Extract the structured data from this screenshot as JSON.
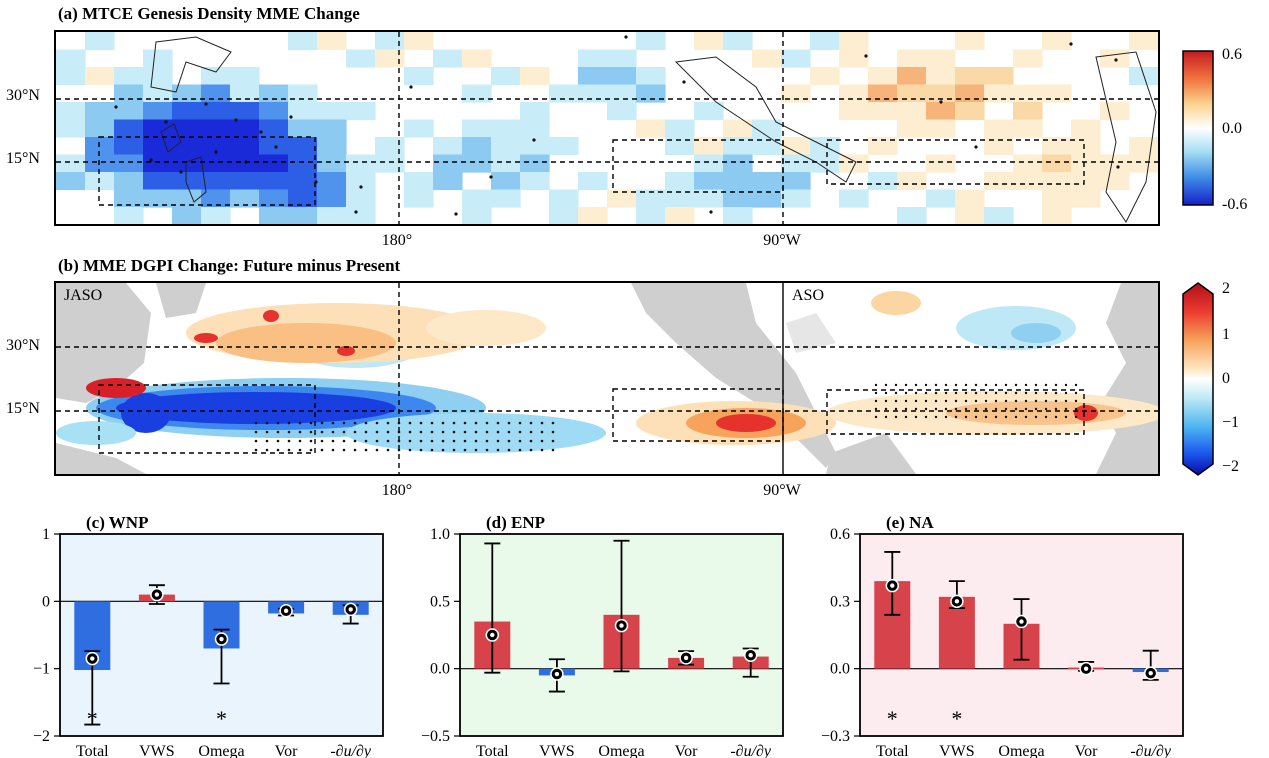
{
  "panel_a": {
    "title": "(a) MTCE Genesis Density MME Change",
    "lat_ticks": [
      "30°N",
      "15°N"
    ],
    "lon_ticks": [
      "180°",
      "90°W"
    ],
    "colorbar_ticks": [
      "0.6",
      "0.0",
      "-0.6"
    ],
    "colors": {
      "neg": "#1f2fd8",
      "pos": "#d8262b"
    }
  },
  "panel_b": {
    "title": "(b) MME DGPI Change: Future minus Present",
    "lat_ticks": [
      "30°N",
      "15°N"
    ],
    "lon_ticks": [
      "180°",
      "90°W"
    ],
    "colorbar_ticks": [
      "2",
      "1",
      "0",
      "−1",
      "−2"
    ],
    "season_left": "JASO",
    "season_right": "ASO"
  },
  "chart_data": [
    {
      "type": "bar",
      "title": "(c) WNP",
      "categories": [
        "Total",
        "VWS",
        "Omega",
        "Vor",
        "-∂u/∂y"
      ],
      "values": [
        -1.02,
        0.1,
        -0.7,
        -0.18,
        -0.2
      ],
      "model_mean": [
        -0.85,
        0.1,
        -0.56,
        -0.14,
        -0.12
      ],
      "error_low": [
        -1.83,
        -0.04,
        -1.22,
        -0.21,
        -0.33
      ],
      "error_high": [
        -0.74,
        0.24,
        -0.42,
        -0.11,
        -0.06
      ],
      "significant": [
        "*",
        "",
        "*",
        "",
        ""
      ],
      "ylim": [
        -2,
        1
      ],
      "yticks": [
        "1",
        "0",
        "−1",
        "−2"
      ],
      "background": "#eaf4fc"
    },
    {
      "type": "bar",
      "title": "(d) ENP",
      "categories": [
        "Total",
        "VWS",
        "Omega",
        "Vor",
        "-∂u/∂y"
      ],
      "values": [
        0.35,
        -0.05,
        0.4,
        0.08,
        0.09
      ],
      "model_mean": [
        0.25,
        -0.04,
        0.32,
        0.08,
        0.1
      ],
      "error_low": [
        -0.03,
        -0.17,
        -0.02,
        0.03,
        -0.06
      ],
      "error_high": [
        0.93,
        0.07,
        0.95,
        0.13,
        0.15
      ],
      "significant": [
        "",
        "",
        "",
        "",
        ""
      ],
      "ylim": [
        -0.5,
        1.0
      ],
      "yticks": [
        "1.0",
        "0.5",
        "0.0",
        "−0.5"
      ],
      "background": "#eafaea"
    },
    {
      "type": "bar",
      "title": "(e) NA",
      "categories": [
        "Total",
        "VWS",
        "Omega",
        "Vor",
        "-∂u/∂y"
      ],
      "values": [
        0.39,
        0.32,
        0.2,
        0.005,
        -0.015
      ],
      "model_mean": [
        0.37,
        0.3,
        0.21,
        0.0,
        -0.02
      ],
      "error_low": [
        0.24,
        0.27,
        0.04,
        -0.01,
        -0.05
      ],
      "error_high": [
        0.52,
        0.39,
        0.31,
        0.03,
        0.08
      ],
      "significant": [
        "*",
        "*",
        "",
        "",
        ""
      ],
      "ylim": [
        -0.3,
        0.6
      ],
      "yticks": [
        "0.6",
        "0.3",
        "0.0",
        "−0.3"
      ],
      "background": "#fcecef"
    }
  ]
}
